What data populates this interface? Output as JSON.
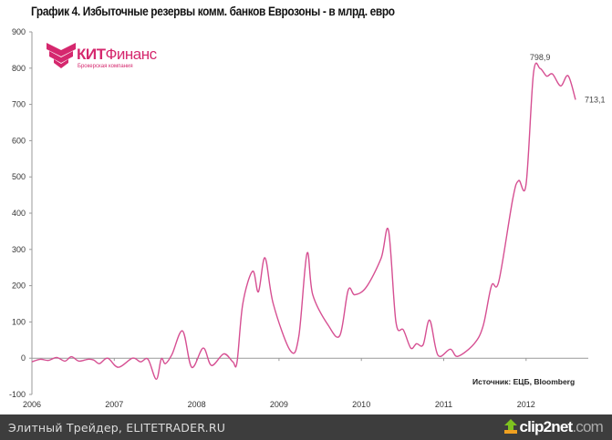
{
  "chart_data": {
    "type": "line",
    "title": "График 4. Избыточные резервы комм. банков Еврозоны - в млрд. евро",
    "xlabel": "",
    "ylabel": "",
    "xlim": [
      2006,
      2012.75
    ],
    "ylim": [
      -100,
      900
    ],
    "x_ticks": [
      "2006",
      "2007",
      "2008",
      "2009",
      "2010",
      "2011",
      "2012"
    ],
    "y_ticks": [
      "900",
      "800",
      "700",
      "600",
      "500",
      "400",
      "300",
      "200",
      "100",
      "0",
      "-100"
    ],
    "grid": false,
    "line_color": "#d64f92",
    "source": "Источник: ЕЦБ, Bloomberg",
    "annotations": [
      {
        "text": "798,9",
        "x": 2012.17,
        "y": 798.9
      },
      {
        "text": "713,1",
        "x": 2012.6,
        "y": 713.1
      }
    ],
    "series": [
      {
        "x": [
          2006.0,
          2006.1,
          2006.2,
          2006.3,
          2006.4,
          2006.48,
          2006.57,
          2006.68,
          2006.75,
          2006.82,
          2006.92,
          2007.05,
          2007.22,
          2007.32,
          2007.41,
          2007.51,
          2007.57,
          2007.62,
          2007.7,
          2007.83,
          2007.94,
          2008.08,
          2008.18,
          2008.33,
          2008.44,
          2008.49,
          2008.56,
          2008.68,
          2008.75,
          2008.83,
          2008.93,
          2009.14,
          2009.24,
          2009.34,
          2009.41,
          2009.6,
          2009.74,
          2009.84,
          2009.92,
          2010.06,
          2010.24,
          2010.33,
          2010.42,
          2010.51,
          2010.6,
          2010.67,
          2010.75,
          2010.83,
          2010.93,
          2011.08,
          2011.17,
          2011.37,
          2011.48,
          2011.58,
          2011.67,
          2011.84,
          2011.91,
          2012.0,
          2012.09,
          2012.17,
          2012.25,
          2012.32,
          2012.42,
          2012.51,
          2012.6
        ],
        "y": [
          -10,
          -3,
          -6,
          2,
          -8,
          4,
          -8,
          -3,
          -5,
          -15,
          0,
          -25,
          0,
          -10,
          -3,
          -58,
          -2,
          -15,
          10,
          75,
          -25,
          28,
          -20,
          12,
          -10,
          -12,
          150,
          240,
          183,
          277,
          150,
          20,
          60,
          289,
          175,
          90,
          63,
          188,
          175,
          196,
          276,
          352,
          100,
          78,
          28,
          40,
          37,
          105,
          8,
          25,
          5,
          40,
          90,
          200,
          213,
          442,
          490,
          480,
          786,
          798.9,
          778,
          784,
          751,
          779,
          713.1
        ]
      }
    ]
  },
  "logo": {
    "name_bold": "КИТ",
    "name_rest": "Финанс",
    "subtitle": "Брокерская компания"
  },
  "footer": {
    "text": "Элитный Трейдер, ELITETRADER.RU",
    "brand_main": "clip2net",
    "brand_domain": ".com"
  }
}
